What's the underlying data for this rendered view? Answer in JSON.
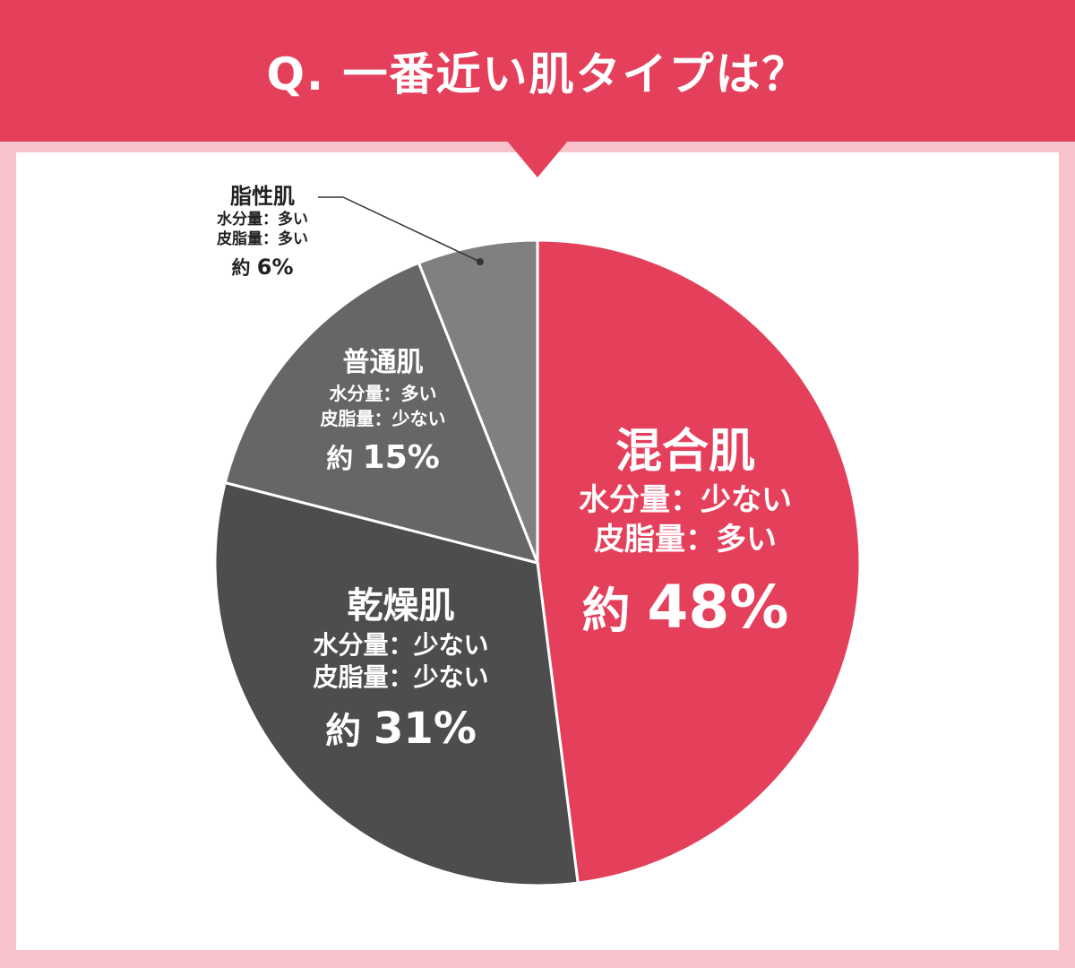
{
  "title": "Q. 一番近い肌タイプは？",
  "colors": {
    "header": "#e5405b",
    "background": "#f8c3cc",
    "panel": "#ffffff"
  },
  "chart_data": {
    "type": "pie",
    "title": "Q. 一番近い肌タイプは？",
    "start_angle_deg": 0,
    "direction": "clockwise",
    "slices": [
      {
        "label": "混合肌",
        "lines": [
          "水分量：少ない",
          "皮脂量：多い"
        ],
        "prefix": "約",
        "value": 48,
        "value_text": "48%",
        "color": "#e5405b"
      },
      {
        "label": "乾燥肌",
        "lines": [
          "水分量：少ない",
          "皮脂量：少ない"
        ],
        "prefix": "約",
        "value": 31,
        "value_text": "31%",
        "color": "#4d4d4d"
      },
      {
        "label": "普通肌",
        "lines": [
          "水分量：多い",
          "皮脂量：少ない"
        ],
        "prefix": "約",
        "value": 15,
        "value_text": "15%",
        "color": "#666666"
      },
      {
        "label": "脂性肌",
        "lines": [
          "水分量：多い",
          "皮脂量：多い"
        ],
        "prefix": "約",
        "value": 6,
        "value_text": "6%",
        "color": "#808080"
      }
    ]
  }
}
